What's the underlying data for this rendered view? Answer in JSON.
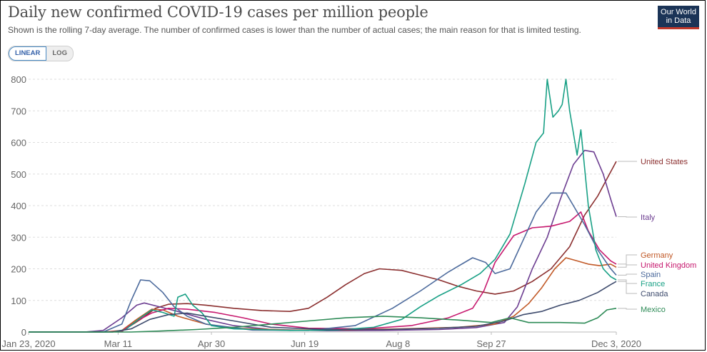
{
  "header": {
    "title": "Daily new confirmed COVID-19 cases per million people",
    "subtitle": "Shown is the rolling 7-day average. The number of confirmed cases is lower than the number of actual cases; the main reason for that is limited testing.",
    "logo_line1": "Our World",
    "logo_line2": "in Data",
    "scale_options": [
      "LINEAR",
      "LOG"
    ],
    "scale_selected": "LINEAR"
  },
  "chart_data": {
    "type": "line",
    "title": "Daily new confirmed COVID-19 cases per million people",
    "xlabel": "",
    "ylabel": "",
    "x_unit": "days since Jan 23, 2020",
    "xlim": [
      0,
      315
    ],
    "ylim": [
      0,
      800
    ],
    "y_ticks": [
      0,
      100,
      200,
      300,
      400,
      500,
      600,
      700,
      800
    ],
    "x_ticks": [
      {
        "day": 0,
        "label": "Jan 23, 2020"
      },
      {
        "day": 48,
        "label": "Mar 11"
      },
      {
        "day": 98,
        "label": "Apr 30"
      },
      {
        "day": 148,
        "label": "Jun 19"
      },
      {
        "day": 198,
        "label": "Aug 8"
      },
      {
        "day": 248,
        "label": "Sep 27"
      },
      {
        "day": 315,
        "label": "Dec 3, 2020"
      }
    ],
    "grid": true,
    "legend": "right (end labels)",
    "series": [
      {
        "name": "United States",
        "color": "#8b2f2f",
        "points": [
          [
            0,
            0
          ],
          [
            40,
            0
          ],
          [
            50,
            2
          ],
          [
            60,
            40
          ],
          [
            68,
            75
          ],
          [
            75,
            88
          ],
          [
            85,
            90
          ],
          [
            95,
            85
          ],
          [
            110,
            75
          ],
          [
            125,
            68
          ],
          [
            140,
            65
          ],
          [
            150,
            75
          ],
          [
            160,
            110
          ],
          [
            170,
            150
          ],
          [
            180,
            185
          ],
          [
            188,
            200
          ],
          [
            200,
            195
          ],
          [
            210,
            180
          ],
          [
            220,
            165
          ],
          [
            230,
            145
          ],
          [
            240,
            130
          ],
          [
            250,
            120
          ],
          [
            260,
            130
          ],
          [
            270,
            160
          ],
          [
            280,
            200
          ],
          [
            290,
            270
          ],
          [
            298,
            370
          ],
          [
            305,
            430
          ],
          [
            310,
            485
          ],
          [
            315,
            540
          ]
        ]
      },
      {
        "name": "Italy",
        "color": "#6d3e91",
        "points": [
          [
            0,
            0
          ],
          [
            30,
            0
          ],
          [
            40,
            5
          ],
          [
            50,
            45
          ],
          [
            58,
            85
          ],
          [
            62,
            92
          ],
          [
            70,
            80
          ],
          [
            80,
            65
          ],
          [
            95,
            40
          ],
          [
            110,
            20
          ],
          [
            130,
            8
          ],
          [
            160,
            4
          ],
          [
            190,
            5
          ],
          [
            220,
            8
          ],
          [
            240,
            14
          ],
          [
            255,
            30
          ],
          [
            262,
            80
          ],
          [
            270,
            200
          ],
          [
            278,
            300
          ],
          [
            285,
            420
          ],
          [
            292,
            530
          ],
          [
            298,
            575
          ],
          [
            303,
            570
          ],
          [
            308,
            500
          ],
          [
            312,
            420
          ],
          [
            315,
            365
          ]
        ]
      },
      {
        "name": "Germany",
        "color": "#c15927",
        "points": [
          [
            0,
            0
          ],
          [
            40,
            0
          ],
          [
            50,
            5
          ],
          [
            58,
            40
          ],
          [
            66,
            72
          ],
          [
            72,
            70
          ],
          [
            80,
            50
          ],
          [
            95,
            25
          ],
          [
            110,
            12
          ],
          [
            140,
            6
          ],
          [
            170,
            7
          ],
          [
            200,
            10
          ],
          [
            230,
            15
          ],
          [
            250,
            25
          ],
          [
            260,
            50
          ],
          [
            268,
            90
          ],
          [
            275,
            140
          ],
          [
            282,
            200
          ],
          [
            288,
            235
          ],
          [
            294,
            225
          ],
          [
            300,
            215
          ],
          [
            306,
            210
          ],
          [
            312,
            215
          ],
          [
            315,
            205
          ]
        ]
      },
      {
        "name": "United Kingdom",
        "color": "#c6186e",
        "points": [
          [
            0,
            0
          ],
          [
            40,
            0
          ],
          [
            50,
            3
          ],
          [
            58,
            35
          ],
          [
            66,
            60
          ],
          [
            75,
            75
          ],
          [
            85,
            72
          ],
          [
            100,
            62
          ],
          [
            115,
            45
          ],
          [
            130,
            25
          ],
          [
            150,
            12
          ],
          [
            180,
            10
          ],
          [
            205,
            20
          ],
          [
            225,
            45
          ],
          [
            238,
            75
          ],
          [
            244,
            130
          ],
          [
            250,
            220
          ],
          [
            260,
            305
          ],
          [
            270,
            330
          ],
          [
            280,
            335
          ],
          [
            290,
            350
          ],
          [
            296,
            380
          ],
          [
            300,
            320
          ],
          [
            306,
            260
          ],
          [
            312,
            225
          ],
          [
            315,
            215
          ]
        ]
      },
      {
        "name": "Spain",
        "color": "#4c6a9c",
        "points": [
          [
            0,
            0
          ],
          [
            40,
            0
          ],
          [
            50,
            25
          ],
          [
            55,
            100
          ],
          [
            60,
            165
          ],
          [
            65,
            162
          ],
          [
            72,
            125
          ],
          [
            78,
            80
          ],
          [
            85,
            50
          ],
          [
            95,
            25
          ],
          [
            120,
            6
          ],
          [
            150,
            5
          ],
          [
            175,
            20
          ],
          [
            195,
            75
          ],
          [
            210,
            130
          ],
          [
            225,
            190
          ],
          [
            238,
            235
          ],
          [
            245,
            220
          ],
          [
            250,
            185
          ],
          [
            258,
            200
          ],
          [
            265,
            290
          ],
          [
            272,
            380
          ],
          [
            280,
            440
          ],
          [
            288,
            440
          ],
          [
            292,
            400
          ],
          [
            298,
            340
          ],
          [
            305,
            260
          ],
          [
            312,
            200
          ],
          [
            315,
            180
          ]
        ]
      },
      {
        "name": "France",
        "color": "#18a085",
        "points": [
          [
            0,
            0
          ],
          [
            45,
            0
          ],
          [
            52,
            8
          ],
          [
            60,
            45
          ],
          [
            66,
            70
          ],
          [
            72,
            62
          ],
          [
            78,
            50
          ],
          [
            80,
            110
          ],
          [
            84,
            120
          ],
          [
            88,
            85
          ],
          [
            93,
            60
          ],
          [
            98,
            20
          ],
          [
            110,
            10
          ],
          [
            140,
            5
          ],
          [
            165,
            6
          ],
          [
            185,
            15
          ],
          [
            200,
            40
          ],
          [
            210,
            80
          ],
          [
            220,
            115
          ],
          [
            232,
            150
          ],
          [
            242,
            185
          ],
          [
            250,
            230
          ],
          [
            258,
            310
          ],
          [
            266,
            470
          ],
          [
            272,
            600
          ],
          [
            276,
            630
          ],
          [
            278,
            800
          ],
          [
            281,
            680
          ],
          [
            284,
            700
          ],
          [
            286,
            720
          ],
          [
            288,
            800
          ],
          [
            290,
            700
          ],
          [
            294,
            560
          ],
          [
            296,
            640
          ],
          [
            300,
            400
          ],
          [
            304,
            260
          ],
          [
            308,
            200
          ],
          [
            312,
            175
          ],
          [
            315,
            165
          ]
        ]
      },
      {
        "name": "Canada",
        "color": "#3e4b6d",
        "points": [
          [
            0,
            0
          ],
          [
            45,
            0
          ],
          [
            55,
            10
          ],
          [
            65,
            40
          ],
          [
            75,
            55
          ],
          [
            85,
            60
          ],
          [
            95,
            50
          ],
          [
            110,
            35
          ],
          [
            130,
            15
          ],
          [
            160,
            8
          ],
          [
            190,
            8
          ],
          [
            220,
            12
          ],
          [
            240,
            18
          ],
          [
            255,
            35
          ],
          [
            265,
            55
          ],
          [
            275,
            65
          ],
          [
            285,
            85
          ],
          [
            295,
            100
          ],
          [
            305,
            125
          ],
          [
            312,
            150
          ],
          [
            315,
            160
          ]
        ]
      },
      {
        "name": "Mexico",
        "color": "#2e8b57",
        "points": [
          [
            0,
            0
          ],
          [
            55,
            0
          ],
          [
            70,
            3
          ],
          [
            90,
            8
          ],
          [
            110,
            15
          ],
          [
            130,
            25
          ],
          [
            150,
            35
          ],
          [
            170,
            45
          ],
          [
            190,
            50
          ],
          [
            210,
            45
          ],
          [
            230,
            38
          ],
          [
            248,
            30
          ],
          [
            258,
            45
          ],
          [
            268,
            30
          ],
          [
            285,
            30
          ],
          [
            298,
            28
          ],
          [
            305,
            45
          ],
          [
            310,
            70
          ],
          [
            315,
            75
          ]
        ]
      }
    ]
  }
}
